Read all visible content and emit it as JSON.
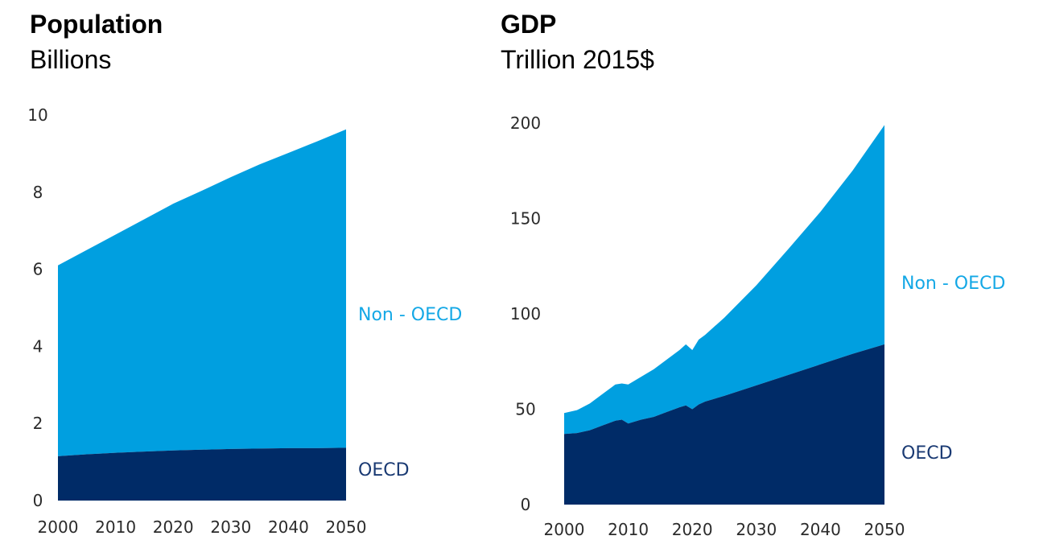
{
  "colors": {
    "non_oecd": "#009fe0",
    "oecd": "#002b67",
    "non_oecd_label": "#14a8e6",
    "oecd_label": "#1a3a73"
  },
  "chart_data": [
    {
      "type": "area",
      "stacked": true,
      "title": "Population",
      "subtitle": "Billions",
      "x": [
        2000,
        2005,
        2010,
        2015,
        2020,
        2025,
        2030,
        2035,
        2040,
        2045,
        2050
      ],
      "x_ticks": [
        "2000",
        "2010",
        "2020",
        "2030",
        "2040",
        "2050"
      ],
      "y_ticks": [
        "0",
        "2",
        "4",
        "6",
        "8",
        "10"
      ],
      "ylim": [
        0,
        10
      ],
      "series": [
        {
          "name": "OECD",
          "values": [
            1.15,
            1.2,
            1.24,
            1.27,
            1.3,
            1.32,
            1.34,
            1.35,
            1.36,
            1.36,
            1.37
          ]
        },
        {
          "name": "Non - OECD",
          "values": [
            4.95,
            5.3,
            5.66,
            6.03,
            6.4,
            6.72,
            7.05,
            7.37,
            7.66,
            7.96,
            8.26
          ]
        }
      ],
      "grid": false,
      "legend": "inline-right"
    },
    {
      "type": "area",
      "stacked": true,
      "title": "GDP",
      "subtitle": "Trillion 2015$",
      "x": [
        2000,
        2002,
        2004,
        2006,
        2008,
        2009,
        2010,
        2012,
        2014,
        2016,
        2018,
        2019,
        2020,
        2021,
        2022,
        2025,
        2030,
        2035,
        2040,
        2045,
        2050
      ],
      "x_ticks": [
        "2000",
        "2010",
        "2020",
        "2030",
        "2040",
        "2050"
      ],
      "y_ticks": [
        "0",
        "50",
        "100",
        "150",
        "200"
      ],
      "ylim": [
        0,
        200
      ],
      "series": [
        {
          "name": "OECD",
          "values": [
            37,
            37.5,
            39,
            41.5,
            44,
            44.5,
            42.5,
            44.5,
            46,
            48.5,
            51,
            52,
            50,
            52.5,
            54,
            57,
            62.5,
            68,
            73.5,
            79,
            84
          ]
        },
        {
          "name": "Non - OECD",
          "values": [
            11,
            12,
            14,
            16.5,
            19,
            19,
            20.5,
            22.5,
            25,
            27.5,
            30,
            32,
            31,
            34,
            35,
            41,
            52.5,
            66,
            80,
            96,
            115
          ]
        }
      ],
      "grid": false,
      "legend": "inline-right"
    }
  ]
}
